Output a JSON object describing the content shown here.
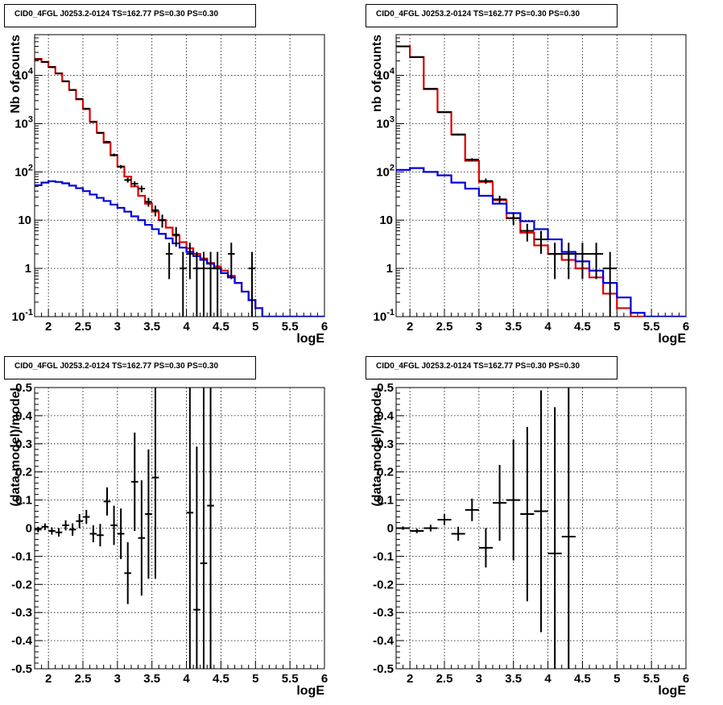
{
  "chart_data": [
    {
      "type": "line",
      "title": "CID0_4FGL J0253.2-0124 TS=162.77 PS=0.30 PS=0.30",
      "xlabel": "logE",
      "ylabel": "Nb of counts",
      "xlim": [
        1.8,
        6.0
      ],
      "ylim": [
        0.1,
        70000
      ],
      "yscale": "log",
      "grid": true,
      "x_ticks": [
        "2",
        "2.5",
        "3",
        "3.5",
        "4",
        "4.5",
        "5",
        "5.5",
        "6"
      ],
      "y_ticks": [
        "10^-1",
        "1",
        "10",
        "10^2",
        "10^3",
        "10^4"
      ],
      "series": [
        {
          "color": "#dd0000",
          "bin_width": 0.1,
          "x": [
            1.85,
            1.95,
            2.05,
            2.15,
            2.25,
            2.35,
            2.45,
            2.55,
            2.65,
            2.75,
            2.85,
            2.95,
            3.05,
            3.15,
            3.25,
            3.35,
            3.45,
            3.55,
            3.65,
            3.75,
            3.85,
            3.95,
            4.05,
            4.15,
            4.25,
            4.35,
            4.45,
            4.55,
            4.65,
            4.75,
            4.85,
            4.95,
            5.05,
            5.15,
            5.25,
            5.35,
            5.45,
            5.55,
            5.65,
            5.75,
            5.85,
            5.95
          ],
          "y": [
            22000,
            19000,
            15000,
            11000,
            7500,
            5000,
            3200,
            2000,
            1100,
            650,
            400,
            220,
            130,
            80,
            50,
            32,
            22,
            15,
            10,
            7,
            4.8,
            3.5,
            2.6,
            2,
            1.6,
            1.3,
            1.1,
            0.9,
            0.7,
            0.5,
            0.33,
            0.22,
            0.15,
            0.1,
            0.1,
            0.1,
            0.1,
            0.1,
            0.1,
            0.1,
            0.1,
            0.1
          ]
        },
        {
          "color": "#0000dd",
          "bin_width": 0.1,
          "x": [
            1.85,
            1.95,
            2.05,
            2.15,
            2.25,
            2.35,
            2.45,
            2.55,
            2.65,
            2.75,
            2.85,
            2.95,
            3.05,
            3.15,
            3.25,
            3.35,
            3.45,
            3.55,
            3.65,
            3.75,
            3.85,
            3.95,
            4.05,
            4.15,
            4.25,
            4.35,
            4.45,
            4.55,
            4.65,
            4.75,
            4.85,
            4.95,
            5.05,
            5.15,
            5.25,
            5.35,
            5.45,
            5.55,
            5.65,
            5.75,
            5.85,
            5.95
          ],
          "y": [
            53,
            60,
            64,
            62,
            58,
            52,
            46,
            40,
            34,
            29,
            25,
            21,
            18,
            15,
            12,
            10,
            8,
            6.5,
            5.2,
            4.2,
            3.3,
            2.7,
            2.2,
            1.8,
            1.5,
            1.25,
            1.0,
            0.8,
            0.65,
            0.5,
            0.33,
            0.22,
            0.15,
            0.1,
            0.1,
            0.1,
            0.1,
            0.1,
            0.1,
            0.1,
            0.1,
            0.1
          ]
        }
      ],
      "data_points": [
        {
          "x": 1.85,
          "y": 21500,
          "ylo": 21300,
          "yhi": 21700
        },
        {
          "x": 1.95,
          "y": 19000,
          "ylo": 18800,
          "yhi": 19200
        },
        {
          "x": 2.05,
          "y": 14800,
          "ylo": 14600,
          "yhi": 15000
        },
        {
          "x": 2.15,
          "y": 11000,
          "ylo": 10800,
          "yhi": 11200
        },
        {
          "x": 2.25,
          "y": 7600,
          "ylo": 7500,
          "yhi": 7700
        },
        {
          "x": 2.35,
          "y": 5000,
          "ylo": 4930,
          "yhi": 5070
        },
        {
          "x": 2.45,
          "y": 3250,
          "ylo": 3190,
          "yhi": 3310
        },
        {
          "x": 2.55,
          "y": 2050,
          "ylo": 2000,
          "yhi": 2100
        },
        {
          "x": 2.65,
          "y": 1080,
          "ylo": 1050,
          "yhi": 1110
        },
        {
          "x": 2.75,
          "y": 640,
          "ylo": 615,
          "yhi": 665
        },
        {
          "x": 2.85,
          "y": 420,
          "ylo": 400,
          "yhi": 440
        },
        {
          "x": 2.95,
          "y": 225,
          "ylo": 210,
          "yhi": 240
        },
        {
          "x": 3.05,
          "y": 128,
          "ylo": 117,
          "yhi": 139
        },
        {
          "x": 3.15,
          "y": 68,
          "ylo": 60,
          "yhi": 76
        },
        {
          "x": 3.25,
          "y": 57,
          "ylo": 50,
          "yhi": 64
        },
        {
          "x": 3.35,
          "y": 45,
          "ylo": 38,
          "yhi": 52
        },
        {
          "x": 3.45,
          "y": 24,
          "ylo": 19,
          "yhi": 29
        },
        {
          "x": 3.55,
          "y": 16,
          "ylo": 12,
          "yhi": 20
        },
        {
          "x": 3.65,
          "y": 10,
          "ylo": 7,
          "yhi": 13
        },
        {
          "x": 3.75,
          "y": 2,
          "ylo": 0.6,
          "yhi": 3.4
        },
        {
          "x": 3.85,
          "y": 5,
          "ylo": 2.8,
          "yhi": 7.2
        },
        {
          "x": 3.95,
          "y": 1,
          "ylo": 0.1,
          "yhi": 2.2
        },
        {
          "x": 4.05,
          "y": 2,
          "ylo": 0.6,
          "yhi": 3.4
        },
        {
          "x": 4.15,
          "y": 1,
          "ylo": 0.1,
          "yhi": 2.2
        },
        {
          "x": 4.25,
          "y": 1,
          "ylo": 0.1,
          "yhi": 2.2
        },
        {
          "x": 4.35,
          "y": 1,
          "ylo": 0.1,
          "yhi": 2.2
        },
        {
          "x": 4.45,
          "y": 1,
          "ylo": 0.1,
          "yhi": 2.2
        },
        {
          "x": 4.65,
          "y": 2,
          "ylo": 0.6,
          "yhi": 3.4
        },
        {
          "x": 4.95,
          "y": 1,
          "ylo": 0.1,
          "yhi": 2.2
        }
      ]
    },
    {
      "type": "line",
      "title": "CID0_4FGL J0253.2-0124 TS=162.77 PS=0.30 PS=0.30",
      "xlabel": "logE",
      "ylabel": "nb of counts",
      "xlim": [
        1.8,
        6.0
      ],
      "ylim": [
        0.1,
        70000
      ],
      "yscale": "log",
      "grid": true,
      "x_ticks": [
        "2",
        "2.5",
        "3",
        "3.5",
        "4",
        "4.5",
        "5",
        "5.5",
        "6"
      ],
      "y_ticks": [
        "10^-1",
        "1",
        "10",
        "10^2",
        "10^3",
        "10^4"
      ],
      "series": [
        {
          "color": "#dd0000",
          "bin_width": 0.2,
          "x": [
            1.9,
            2.1,
            2.3,
            2.5,
            2.7,
            2.9,
            3.1,
            3.3,
            3.5,
            3.7,
            3.9,
            4.1,
            4.3,
            4.5,
            4.7,
            4.9,
            5.1,
            5.3,
            5.5,
            5.7,
            5.9
          ],
          "y": [
            40000,
            24000,
            5200,
            1750,
            600,
            170,
            62,
            26,
            11,
            5.5,
            3.0,
            2.0,
            1.5,
            1.0,
            0.65,
            0.3,
            0.15,
            0.1,
            0.1,
            0.1,
            0.1
          ]
        },
        {
          "color": "#0000dd",
          "bin_width": 0.2,
          "x": [
            1.9,
            2.1,
            2.3,
            2.5,
            2.7,
            2.9,
            3.1,
            3.3,
            3.5,
            3.7,
            3.9,
            4.1,
            4.3,
            4.5,
            4.7,
            4.9,
            5.1,
            5.3,
            5.5,
            5.7,
            5.9
          ],
          "y": [
            110,
            120,
            100,
            85,
            60,
            45,
            32,
            22,
            14,
            9.5,
            6.5,
            4,
            2.2,
            1.4,
            0.9,
            0.5,
            0.25,
            0.12,
            0.1,
            0.1,
            0.1
          ]
        }
      ],
      "data_points": [
        {
          "x": 1.9,
          "y": 40000,
          "ylo": 39700,
          "yhi": 40300
        },
        {
          "x": 2.1,
          "y": 24000,
          "ylo": 23800,
          "yhi": 24200
        },
        {
          "x": 2.3,
          "y": 5300,
          "ylo": 5230,
          "yhi": 5370
        },
        {
          "x": 2.5,
          "y": 1720,
          "ylo": 1680,
          "yhi": 1760
        },
        {
          "x": 2.7,
          "y": 590,
          "ylo": 566,
          "yhi": 614
        },
        {
          "x": 2.9,
          "y": 180,
          "ylo": 167,
          "yhi": 193
        },
        {
          "x": 3.1,
          "y": 65,
          "ylo": 57,
          "yhi": 73
        },
        {
          "x": 3.3,
          "y": 27,
          "ylo": 22,
          "yhi": 32
        },
        {
          "x": 3.5,
          "y": 11,
          "ylo": 8,
          "yhi": 14
        },
        {
          "x": 3.7,
          "y": 6,
          "ylo": 3.6,
          "yhi": 8.4
        },
        {
          "x": 3.9,
          "y": 4,
          "ylo": 2,
          "yhi": 6
        },
        {
          "x": 4.1,
          "y": 2,
          "ylo": 0.6,
          "yhi": 3.4
        },
        {
          "x": 4.3,
          "y": 2,
          "ylo": 0.6,
          "yhi": 3.4
        },
        {
          "x": 4.5,
          "y": 2,
          "ylo": 0.6,
          "yhi": 3.4
        },
        {
          "x": 4.7,
          "y": 2,
          "ylo": 0.6,
          "yhi": 3.4
        },
        {
          "x": 4.9,
          "y": 1,
          "ylo": 0.1,
          "yhi": 2.2
        }
      ]
    },
    {
      "type": "scatter",
      "title": "CID0_4FGL J0253.2-0124 TS=162.77 PS=0.30 PS=0.30",
      "xlabel": "logE",
      "ylabel": "(data-model)/model",
      "xlim": [
        1.8,
        6.0
      ],
      "ylim": [
        -0.5,
        0.5
      ],
      "grid": true,
      "x_ticks": [
        "2",
        "2.5",
        "3",
        "3.5",
        "4",
        "4.5",
        "5",
        "5.5",
        "6"
      ],
      "y_ticks": [
        "-0.5",
        "-0.4",
        "-0.3",
        "-0.2",
        "-0.1",
        "0",
        "0.1",
        "0.2",
        "0.3",
        "0.4",
        "0.5"
      ],
      "bin_width": 0.1,
      "data_points": [
        {
          "x": 1.85,
          "y": -0.005,
          "err": 0.01
        },
        {
          "x": 1.95,
          "y": 0.005,
          "err": 0.012
        },
        {
          "x": 2.05,
          "y": -0.01,
          "err": 0.013
        },
        {
          "x": 2.15,
          "y": -0.015,
          "err": 0.015
        },
        {
          "x": 2.25,
          "y": 0.01,
          "err": 0.018
        },
        {
          "x": 2.35,
          "y": -0.005,
          "err": 0.022
        },
        {
          "x": 2.45,
          "y": 0.025,
          "err": 0.025
        },
        {
          "x": 2.55,
          "y": 0.04,
          "err": 0.025
        },
        {
          "x": 2.65,
          "y": -0.02,
          "err": 0.03
        },
        {
          "x": 2.75,
          "y": -0.025,
          "err": 0.04
        },
        {
          "x": 2.85,
          "y": 0.095,
          "err": 0.05
        },
        {
          "x": 2.95,
          "y": 0.01,
          "err": 0.07
        },
        {
          "x": 3.05,
          "y": -0.02,
          "err": 0.09
        },
        {
          "x": 3.15,
          "y": -0.16,
          "err": 0.11
        },
        {
          "x": 3.25,
          "y": 0.165,
          "err": 0.175
        },
        {
          "x": 3.35,
          "y": -0.035,
          "err": 0.205
        },
        {
          "x": 3.45,
          "y": 0.05,
          "err": 0.23
        },
        {
          "x": 3.55,
          "y": 0.18,
          "err": 0.36
        },
        {
          "x": 4.05,
          "y": 0.055,
          "err": 0.65
        },
        {
          "x": 4.15,
          "y": -0.29,
          "err": 0.58
        },
        {
          "x": 4.25,
          "y": -0.125,
          "err": 0.8
        },
        {
          "x": 4.35,
          "y": 0.08,
          "err": 0.9
        }
      ]
    },
    {
      "type": "scatter",
      "title": "CID0_4FGL J0253.2-0124 TS=162.77 PS=0.30 PS=0.30",
      "xlabel": "logE",
      "ylabel": "(data-model)/model",
      "xlim": [
        1.8,
        6.0
      ],
      "ylim": [
        -0.5,
        0.5
      ],
      "grid": true,
      "x_ticks": [
        "2",
        "2.5",
        "3",
        "3.5",
        "4",
        "4.5",
        "5",
        "5.5",
        "6"
      ],
      "y_ticks": [
        "-0.5",
        "-0.4",
        "-0.3",
        "-0.2",
        "-0.1",
        "0",
        "0.1",
        "0.2",
        "0.3",
        "0.4",
        "0.5"
      ],
      "bin_width": 0.2,
      "data_points": [
        {
          "x": 1.9,
          "y": 0.0,
          "err": 0.006
        },
        {
          "x": 2.1,
          "y": -0.01,
          "err": 0.008
        },
        {
          "x": 2.3,
          "y": 0.0,
          "err": 0.012
        },
        {
          "x": 2.5,
          "y": 0.03,
          "err": 0.02
        },
        {
          "x": 2.7,
          "y": -0.02,
          "err": 0.025
        },
        {
          "x": 2.9,
          "y": 0.065,
          "err": 0.04
        },
        {
          "x": 3.1,
          "y": -0.07,
          "err": 0.07
        },
        {
          "x": 3.3,
          "y": 0.09,
          "err": 0.135
        },
        {
          "x": 3.5,
          "y": 0.1,
          "err": 0.215
        },
        {
          "x": 3.7,
          "y": 0.05,
          "err": 0.31
        },
        {
          "x": 3.9,
          "y": 0.06,
          "err": 0.43
        },
        {
          "x": 4.1,
          "y": -0.09,
          "err": 0.52
        },
        {
          "x": 4.3,
          "y": -0.03,
          "err": 0.9
        }
      ]
    }
  ]
}
